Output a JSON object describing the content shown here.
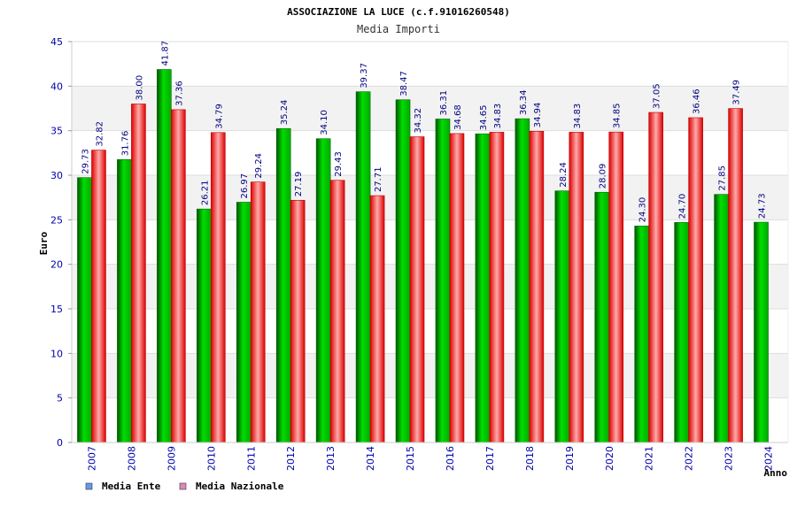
{
  "chart_data": {
    "type": "bar",
    "title": "ASSOCIAZIONE LA LUCE (c.f.91016260548)",
    "subtitle": "Media Importi",
    "xlabel": "Anno",
    "ylabel": "Euro",
    "ylim": [
      0,
      45
    ],
    "yticks": [
      0,
      5,
      10,
      15,
      20,
      25,
      30,
      35,
      40,
      45
    ],
    "grid": true,
    "legend_position": "bottom-left",
    "categories": [
      "2007",
      "2008",
      "2009",
      "2010",
      "2011",
      "2012",
      "2013",
      "2014",
      "2015",
      "2016",
      "2017",
      "2018",
      "2019",
      "2020",
      "2021",
      "2022",
      "2023",
      "2024"
    ],
    "series": [
      {
        "name": "Media Ente",
        "color": "#00aa00",
        "legend_color": "#6699ee",
        "values": [
          29.73,
          31.76,
          41.87,
          26.21,
          26.97,
          35.24,
          34.1,
          39.37,
          38.47,
          36.31,
          34.65,
          36.34,
          28.24,
          28.09,
          24.3,
          24.7,
          27.85,
          24.73
        ],
        "labels": [
          "29.73",
          "31.76",
          "41.87",
          "26.21",
          "26.97",
          "35.24",
          "34.10",
          "39.37",
          "38.47",
          "36.31",
          "34.65",
          "36.34",
          "28.24",
          "28.09",
          "24.30",
          "24.70",
          "27.85",
          "24.73"
        ]
      },
      {
        "name": "Media Nazionale",
        "color": "#ee2222",
        "legend_color": "#dd88bb",
        "values": [
          32.82,
          38.0,
          37.36,
          34.79,
          29.24,
          27.19,
          29.43,
          27.71,
          34.32,
          34.68,
          34.83,
          34.94,
          34.83,
          34.85,
          37.05,
          36.46,
          37.49,
          null
        ],
        "labels": [
          "32.82",
          "38.00",
          "37.36",
          "34.79",
          "29.24",
          "27.19",
          "29.43",
          "27.71",
          "34.32",
          "34.68",
          "34.83",
          "34.94",
          "34.83",
          "34.85",
          "37.05",
          "36.46",
          "37.49",
          null
        ]
      }
    ]
  }
}
